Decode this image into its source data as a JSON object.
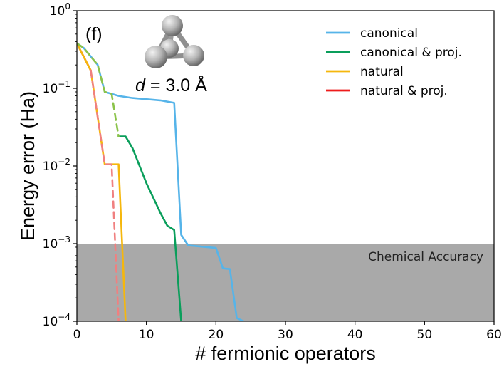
{
  "panel_label": "(f)",
  "molecule_label": {
    "variable": "d",
    "rest": " = 3.0 Å"
  },
  "colors": {
    "canonical": "#56b4e9",
    "canonical_proj": "#0a9e5b",
    "natural": "#f5b70d",
    "natural_proj": "#ee1c1c",
    "natural_dashed": "#f08080",
    "canonical_dashed": "#8bc34a",
    "chemical_accuracy_band": "#a9a9a9"
  },
  "chart_data": {
    "type": "line",
    "xlabel": "# fermionic operators",
    "ylabel": "Energy error (Ha)",
    "xlim": [
      0,
      60
    ],
    "ylim": [
      0.0001,
      1
    ],
    "yscale": "log",
    "x_ticks": [
      "0",
      "10",
      "20",
      "30",
      "40",
      "50",
      "60"
    ],
    "y_ticks": [
      {
        "base": "10",
        "exp": "−4"
      },
      {
        "base": "10",
        "exp": "−3"
      },
      {
        "base": "10",
        "exp": "−2"
      },
      {
        "base": "10",
        "exp": "−1"
      },
      {
        "base": "10",
        "exp": "0"
      }
    ],
    "legend_position": "top-right",
    "chemical_accuracy": {
      "label": "Chemical Accuracy",
      "y_max": 0.001
    },
    "series": [
      {
        "name": "canonical",
        "color_key": "canonical",
        "dashed": false,
        "points": [
          [
            0,
            0.38
          ],
          [
            1,
            0.33
          ],
          [
            3,
            0.2
          ],
          [
            4,
            0.09
          ],
          [
            5,
            0.085
          ],
          [
            6,
            0.08
          ],
          [
            8,
            0.075
          ],
          [
            12,
            0.07
          ],
          [
            14,
            0.065
          ],
          [
            15,
            0.0013
          ],
          [
            16,
            0.00095
          ],
          [
            20,
            0.00088
          ],
          [
            21,
            0.00048
          ],
          [
            22,
            0.00047
          ],
          [
            23,
            0.00011
          ],
          [
            24,
            0.0001
          ]
        ]
      },
      {
        "name": "canonical & proj.",
        "color_key": "canonical_proj",
        "dashed": false,
        "points": [
          [
            6,
            0.024
          ],
          [
            7,
            0.024
          ],
          [
            8,
            0.017
          ],
          [
            10,
            0.006
          ],
          [
            12,
            0.0025
          ],
          [
            13,
            0.0017
          ],
          [
            14,
            0.0015
          ],
          [
            15,
            0.0001
          ]
        ]
      },
      {
        "name": "natural",
        "color_key": "natural",
        "dashed": false,
        "points": [
          [
            0,
            0.38
          ],
          [
            2,
            0.17
          ],
          [
            4,
            0.0105
          ],
          [
            6,
            0.0105
          ],
          [
            7,
            0.0001
          ]
        ]
      },
      {
        "name": "natural & proj.",
        "color_key": "natural_proj",
        "dashed": false,
        "points": [
          [
            0,
            0.38
          ],
          [
            2,
            0.17
          ]
        ]
      },
      {
        "name": "",
        "color_key": "natural_dashed",
        "dashed": true,
        "points": [
          [
            2,
            0.17
          ],
          [
            4,
            0.0105
          ],
          [
            5,
            0.0105
          ],
          [
            6,
            0.0001
          ]
        ]
      },
      {
        "name": "",
        "color_key": "canonical_dashed",
        "dashed": true,
        "points": [
          [
            0,
            0.38
          ],
          [
            1,
            0.33
          ],
          [
            3,
            0.2
          ],
          [
            4,
            0.09
          ],
          [
            5,
            0.085
          ],
          [
            6,
            0.024
          ]
        ]
      }
    ]
  }
}
